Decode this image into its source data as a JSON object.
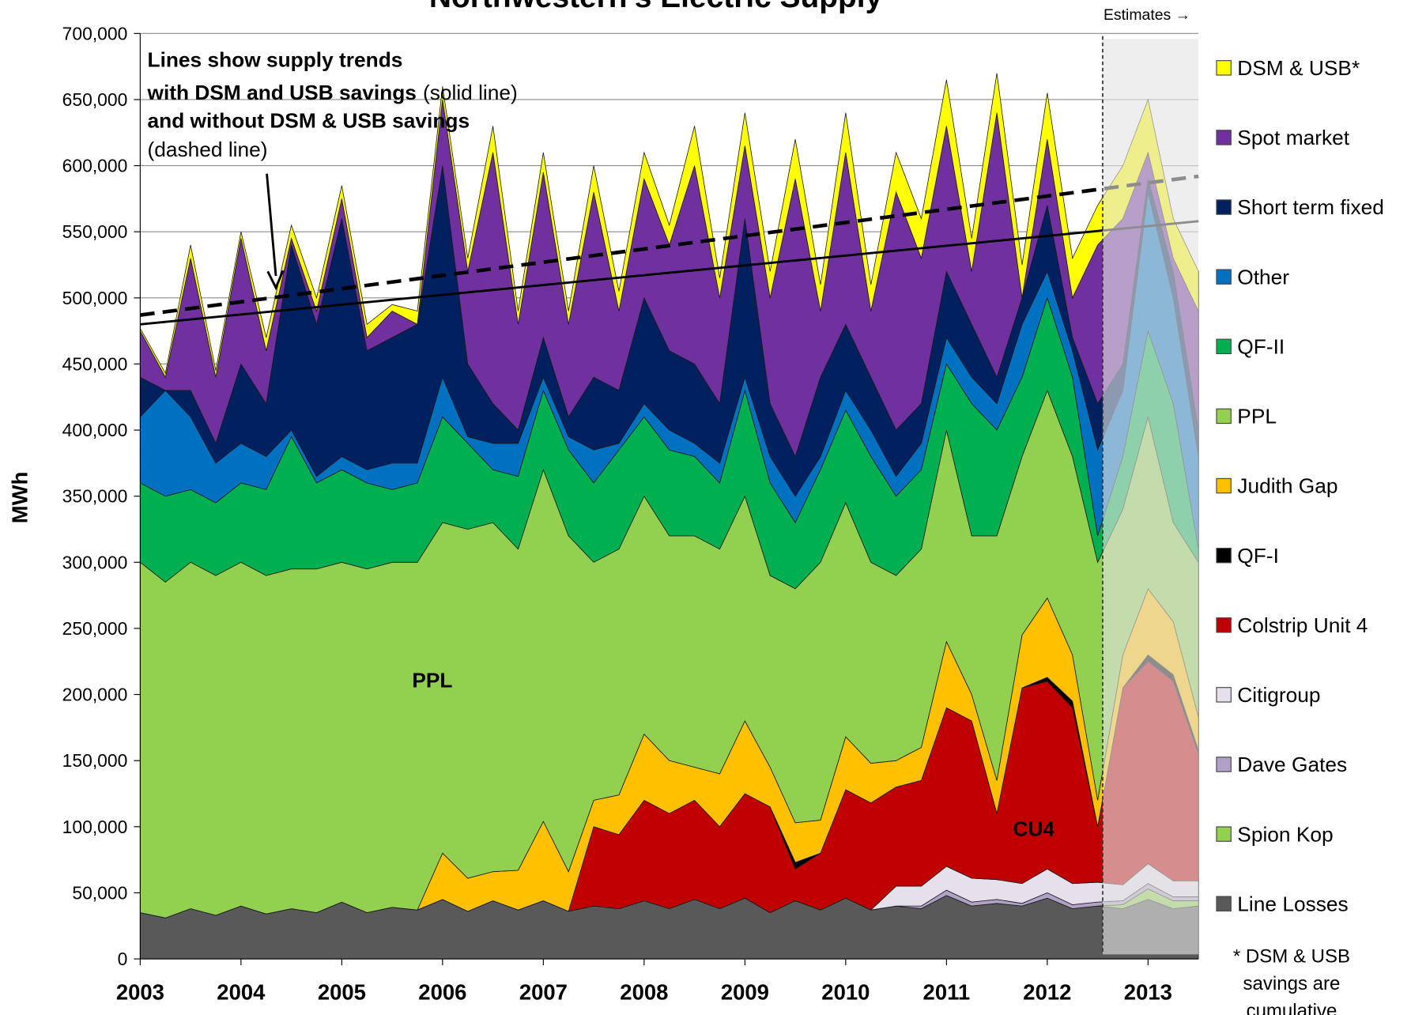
{
  "chart_data": {
    "type": "stacked_area",
    "title": "Northwestern's Electric Supply",
    "ylabel": "MWh",
    "estimates_label": "Estimates →",
    "estimates_from": 2012.55,
    "note": [
      [
        "Lines show supply trends"
      ],
      [
        "with DSM and USB savings",
        "(solid line)"
      ],
      [
        "and without DSM & USB savings"
      ],
      [
        "(dashed line)"
      ]
    ],
    "area_labels": [
      "PPL",
      "CU4"
    ],
    "footnote": [
      "* DSM & USB",
      "savings are",
      "cumulative"
    ],
    "xlim": [
      2003,
      2013.5
    ],
    "xticks": [
      2003,
      2004,
      2005,
      2006,
      2007,
      2008,
      2009,
      2010,
      2011,
      2012,
      2013
    ],
    "ylim": [
      0,
      700000
    ],
    "yticks": [
      0,
      {
        "value": 50000,
        "label": "50,000"
      },
      {
        "value": 100000,
        "label": "100,000"
      },
      {
        "value": 150000,
        "label": "150,000"
      },
      {
        "value": 200000,
        "label": "200,000"
      },
      {
        "value": 250000,
        "label": "250,000"
      },
      {
        "value": 300000,
        "label": "300,000"
      },
      {
        "value": 350000,
        "label": "350,000"
      },
      {
        "value": 400000,
        "label": "400,000"
      },
      {
        "value": 450000,
        "label": "450,000"
      },
      {
        "value": 500000,
        "label": "500,000"
      },
      {
        "value": 550000,
        "label": "550,000"
      },
      {
        "value": 600000,
        "label": "600,000"
      },
      {
        "value": 650000,
        "label": "650,000"
      },
      {
        "value": 700000,
        "label": "700,000"
      }
    ],
    "grid": true,
    "x": [
      2003,
      2003.25,
      2003.5,
      2003.75,
      2004,
      2004.25,
      2004.5,
      2004.75,
      2005,
      2005.25,
      2005.5,
      2005.75,
      2006,
      2006.25,
      2006.5,
      2006.75,
      2007,
      2007.25,
      2007.5,
      2007.75,
      2008,
      2008.25,
      2008.5,
      2008.75,
      2009,
      2009.25,
      2009.5,
      2009.75,
      2010,
      2010.25,
      2010.5,
      2010.75,
      2011,
      2011.25,
      2011.5,
      2011.75,
      2012,
      2012.25,
      2012.5,
      2012.75,
      2013,
      2013.25,
      2013.5
    ],
    "series": [
      {
        "name": "Line Losses",
        "color": "#595959",
        "values": [
          35000,
          31000,
          38000,
          33000,
          40000,
          34000,
          38000,
          35000,
          43000,
          35000,
          39000,
          37000,
          45000,
          36000,
          44000,
          37000,
          44000,
          36000,
          40000,
          38000,
          44000,
          38000,
          45000,
          38000,
          46000,
          35000,
          44000,
          37000,
          46000,
          37000,
          40000,
          38000,
          48000,
          40000,
          42000,
          40000,
          46000,
          38000,
          40000,
          38000,
          45000,
          38000,
          40000
        ]
      },
      {
        "name": "Spion Kop",
        "color": "#92d050",
        "values": [
          0,
          0,
          0,
          0,
          0,
          0,
          0,
          0,
          0,
          0,
          0,
          0,
          0,
          0,
          0,
          0,
          0,
          0,
          0,
          0,
          0,
          0,
          0,
          0,
          0,
          0,
          0,
          0,
          0,
          0,
          0,
          0,
          0,
          0,
          0,
          0,
          0,
          0,
          0,
          3000,
          8000,
          6000,
          4000
        ]
      },
      {
        "name": "Dave Gates",
        "color": "#b1a0c7",
        "values": [
          0,
          0,
          0,
          0,
          0,
          0,
          0,
          0,
          0,
          0,
          0,
          0,
          0,
          0,
          0,
          0,
          0,
          0,
          0,
          0,
          0,
          0,
          0,
          0,
          0,
          0,
          0,
          0,
          0,
          0,
          0,
          2000,
          4000,
          3000,
          3000,
          2000,
          4000,
          3000,
          3000,
          3000,
          4000,
          3000,
          3000
        ]
      },
      {
        "name": "Citigroup",
        "color": "#e6e0ec",
        "values": [
          0,
          0,
          0,
          0,
          0,
          0,
          0,
          0,
          0,
          0,
          0,
          0,
          0,
          0,
          0,
          0,
          0,
          0,
          0,
          0,
          0,
          0,
          0,
          0,
          0,
          0,
          0,
          0,
          0,
          0,
          15000,
          15000,
          18000,
          18000,
          15000,
          15000,
          18000,
          16000,
          15000,
          12000,
          15000,
          12000,
          12000
        ]
      },
      {
        "name": "Colstrip Unit 4",
        "color": "#c00000",
        "values": [
          0,
          0,
          0,
          0,
          0,
          0,
          0,
          0,
          0,
          0,
          0,
          0,
          0,
          0,
          0,
          0,
          0,
          0,
          60000,
          56000,
          76000,
          72000,
          75000,
          62000,
          79000,
          80000,
          24000,
          43000,
          82000,
          81000,
          75000,
          80000,
          120000,
          119000,
          50000,
          148000,
          142000,
          133000,
          42000,
          149000,
          153000,
          151000,
          96000
        ]
      },
      {
        "name": "QF-I",
        "color": "#000000",
        "values": [
          0,
          0,
          0,
          0,
          0,
          0,
          0,
          0,
          0,
          0,
          0,
          0,
          0,
          0,
          0,
          0,
          0,
          0,
          0,
          0,
          0,
          0,
          0,
          0,
          0,
          0,
          5000,
          0,
          0,
          0,
          0,
          0,
          0,
          0,
          0,
          0,
          3000,
          5000,
          0,
          0,
          5000,
          5000,
          3000
        ]
      },
      {
        "name": "Judith Gap",
        "color": "#ffc000",
        "values": [
          0,
          0,
          0,
          0,
          0,
          0,
          0,
          0,
          0,
          0,
          0,
          0,
          35000,
          25000,
          22000,
          30000,
          60000,
          30000,
          20000,
          30000,
          50000,
          40000,
          25000,
          40000,
          55000,
          30000,
          30000,
          25000,
          40000,
          30000,
          20000,
          25000,
          50000,
          20000,
          25000,
          40000,
          60000,
          35000,
          20000,
          25000,
          50000,
          40000,
          25000
        ]
      },
      {
        "name": "PPL",
        "color": "#92d050",
        "values": [
          265000,
          254000,
          262000,
          257000,
          260000,
          256000,
          257000,
          260000,
          257000,
          260000,
          261000,
          263000,
          250000,
          264000,
          264000,
          243000,
          266000,
          254000,
          180000,
          186000,
          180000,
          170000,
          175000,
          170000,
          170000,
          145000,
          177000,
          195000,
          177000,
          152000,
          140000,
          150000,
          160000,
          120000,
          185000,
          135000,
          157000,
          150000,
          180000,
          110000,
          130000,
          75000,
          117000
        ]
      },
      {
        "name": "QF-II",
        "color": "#00b050",
        "values": [
          60000,
          65000,
          55000,
          55000,
          60000,
          65000,
          100000,
          65000,
          70000,
          65000,
          55000,
          60000,
          80000,
          65000,
          40000,
          55000,
          60000,
          65000,
          60000,
          75000,
          60000,
          65000,
          60000,
          50000,
          80000,
          70000,
          50000,
          70000,
          70000,
          80000,
          60000,
          60000,
          50000,
          100000,
          80000,
          60000,
          70000,
          60000,
          20000,
          40000,
          65000,
          90000,
          10000
        ]
      },
      {
        "name": "Other",
        "color": "#0070c0",
        "values": [
          50000,
          80000,
          55000,
          30000,
          30000,
          25000,
          5000,
          5000,
          10000,
          10000,
          20000,
          15000,
          30000,
          5000,
          20000,
          25000,
          10000,
          10000,
          25000,
          5000,
          10000,
          15000,
          10000,
          15000,
          10000,
          20000,
          20000,
          10000,
          15000,
          20000,
          15000,
          20000,
          20000,
          20000,
          20000,
          40000,
          20000,
          20000,
          65000,
          50000,
          105000,
          80000,
          70000
        ]
      },
      {
        "name": "Short term fixed",
        "color": "#002060",
        "values": [
          30000,
          0,
          20000,
          15000,
          60000,
          40000,
          140000,
          115000,
          180000,
          90000,
          95000,
          105000,
          160000,
          55000,
          30000,
          10000,
          30000,
          15000,
          55000,
          40000,
          80000,
          60000,
          60000,
          45000,
          120000,
          40000,
          30000,
          60000,
          50000,
          40000,
          35000,
          30000,
          50000,
          40000,
          20000,
          20000,
          50000,
          10000,
          35000,
          20000,
          10000,
          20000,
          20000
        ]
      },
      {
        "name": "Spot market",
        "color": "#7030a0",
        "values": [
          35000,
          10000,
          100000,
          50000,
          95000,
          40000,
          5000,
          10000,
          15000,
          10000,
          20000,
          0,
          50000,
          70000,
          190000,
          80000,
          125000,
          70000,
          140000,
          60000,
          90000,
          80000,
          150000,
          80000,
          55000,
          80000,
          210000,
          50000,
          130000,
          50000,
          180000,
          110000,
          110000,
          40000,
          200000,
          0,
          50000,
          30000,
          120000,
          110000,
          20000,
          10000,
          90000
        ]
      },
      {
        "name": "DSM & USB*",
        "color": "#ffff00",
        "values": [
          2000,
          3000,
          10000,
          5000,
          5000,
          10000,
          10000,
          10000,
          10000,
          10000,
          5000,
          10000,
          10000,
          10000,
          20000,
          10000,
          15000,
          10000,
          20000,
          15000,
          20000,
          15000,
          30000,
          15000,
          25000,
          20000,
          30000,
          20000,
          30000,
          20000,
          30000,
          30000,
          35000,
          25000,
          30000,
          25000,
          35000,
          30000,
          30000,
          40000,
          40000,
          30000,
          30000
        ]
      }
    ],
    "trend_lines": [
      {
        "style": "solid",
        "x": [
          2003,
          2013.5
        ],
        "values": [
          480000,
          558000
        ]
      },
      {
        "style": "dashed",
        "x": [
          2003,
          2013.5
        ],
        "values": [
          487000,
          592000
        ]
      }
    ]
  }
}
